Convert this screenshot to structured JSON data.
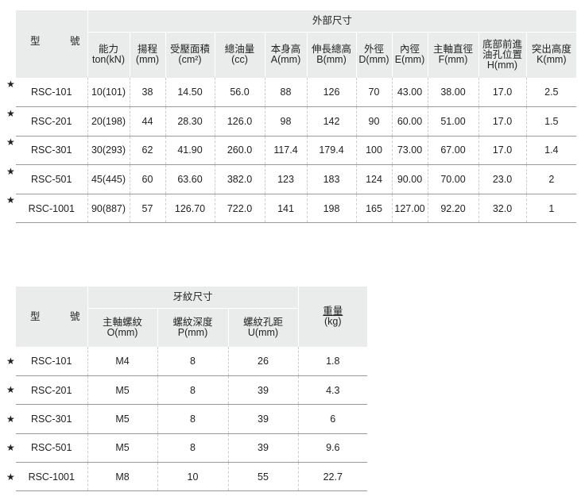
{
  "table1": {
    "model_header": "型　　　號",
    "group_header": "外部尺寸",
    "columns": [
      [
        "能力",
        "ton(kN)"
      ],
      [
        "揚程",
        "(mm)"
      ],
      [
        "受壓面積",
        "(cm²)"
      ],
      [
        "總油量",
        "(cc)"
      ],
      [
        "本身高",
        "A(mm)"
      ],
      [
        "伸長總高",
        "B(mm)"
      ],
      [
        "外徑",
        "D(mm)"
      ],
      [
        "內徑",
        "E(mm)"
      ],
      [
        "主軸直徑",
        "F(mm)"
      ],
      [
        "底部前進",
        "油孔位置",
        "H(mm)"
      ],
      [
        "突出高度",
        "K(mm)"
      ]
    ],
    "rows": [
      [
        "RSC-101",
        "10(101)",
        "38",
        "14.50",
        "56.0",
        "88",
        "126",
        "70",
        "43.00",
        "38.00",
        "17.0",
        "2.5"
      ],
      [
        "RSC-201",
        "20(198)",
        "44",
        "28.30",
        "126.0",
        "98",
        "142",
        "90",
        "60.00",
        "51.00",
        "17.0",
        "1.5"
      ],
      [
        "RSC-301",
        "30(293)",
        "62",
        "41.90",
        "260.0",
        "117.4",
        "179.4",
        "100",
        "73.00",
        "67.00",
        "17.0",
        "1.4"
      ],
      [
        "RSC-501",
        "45(445)",
        "60",
        "63.60",
        "382.0",
        "123",
        "183",
        "124",
        "90.00",
        "70.00",
        "23.0",
        "2"
      ],
      [
        "RSC-1001",
        "90(887)",
        "57",
        "126.70",
        "722.0",
        "141",
        "198",
        "165",
        "127.00",
        "92.20",
        "32.0",
        "1"
      ]
    ]
  },
  "table2": {
    "model_header": "型　　　號",
    "group_header": "牙紋尺寸",
    "columns": [
      [
        "主軸螺紋",
        "O(mm)"
      ],
      [
        "螺紋深度",
        "P(mm)"
      ],
      [
        "螺紋孔距",
        "U(mm)"
      ]
    ],
    "weight_header": [
      "重量",
      "(kg)"
    ],
    "rows": [
      [
        "RSC-101",
        "M4",
        "8",
        "26",
        "1.8"
      ],
      [
        "RSC-201",
        "M5",
        "8",
        "39",
        "4.3"
      ],
      [
        "RSC-301",
        "M5",
        "8",
        "39",
        "6"
      ],
      [
        "RSC-501",
        "M5",
        "8",
        "39",
        "9.6"
      ],
      [
        "RSC-1001",
        "M8",
        "10",
        "55",
        "22.7"
      ]
    ]
  },
  "star": "★"
}
